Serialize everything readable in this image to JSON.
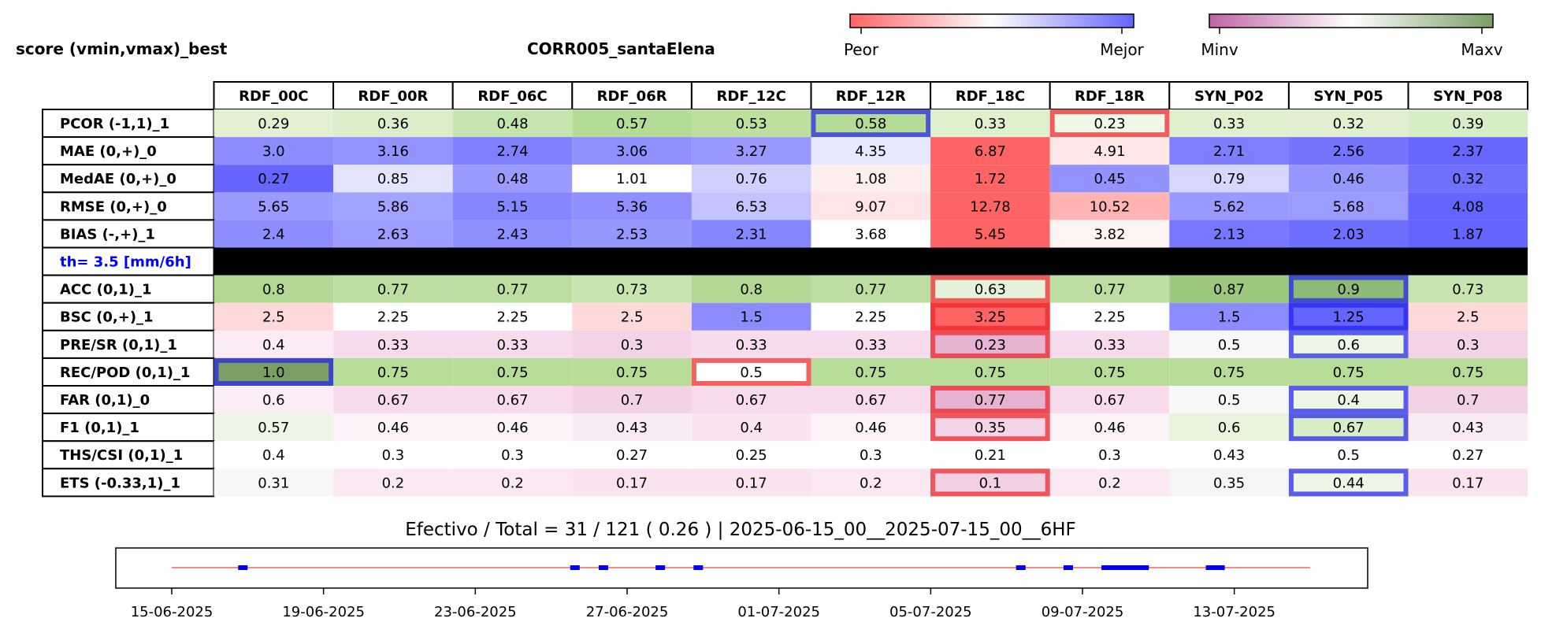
{
  "header": {
    "left_title": "score (vmin,vmax)_best",
    "center_title": "CORR005_santaElena"
  },
  "colorbars": [
    {
      "low_label": "Peor",
      "high_label": "Mejor",
      "colors": [
        "#ff6464",
        "#ffffff",
        "#6464ff"
      ]
    },
    {
      "low_label": "Minv",
      "high_label": "Maxv",
      "colors": [
        "#c064a4",
        "#ffffff",
        "#7a9e64"
      ]
    }
  ],
  "table": {
    "columns": [
      "RDF_00C",
      "RDF_00R",
      "RDF_06C",
      "RDF_06R",
      "RDF_12C",
      "RDF_12R",
      "RDF_18C",
      "RDF_18R",
      "SYN_P02",
      "SYN_P05",
      "SYN_P08"
    ],
    "rows": [
      {
        "label": "PCOR (-1,1)_1",
        "values": [
          "0.29",
          "0.36",
          "0.48",
          "0.57",
          "0.53",
          "0.58",
          "0.33",
          "0.23",
          "0.33",
          "0.32",
          "0.39"
        ],
        "colors": [
          "#e2f1d2",
          "#dbeecb",
          "#c6e4ad",
          "#b5dc96",
          "#bde09f",
          "#b3db94",
          "#dff0cf",
          "#f0f8e8",
          "#dff0cf",
          "#e0f0d0",
          "#d7edc6"
        ],
        "best": 5,
        "worst": 7
      },
      {
        "label": "MAE (0,+)_0",
        "values": [
          "3.0",
          "3.16",
          "2.74",
          "3.06",
          "3.27",
          "4.35",
          "6.87",
          "4.91",
          "2.71",
          "2.56",
          "2.37"
        ],
        "colors": [
          "#8c8cff",
          "#9393ff",
          "#8080ff",
          "#9090ff",
          "#9898ff",
          "#e8e8ff",
          "#ff6464",
          "#ffe7e7",
          "#7e7eff",
          "#7474ff",
          "#6767ff"
        ]
      },
      {
        "label": "MedAE (0,+)_0",
        "values": [
          "0.27",
          "0.85",
          "0.48",
          "1.01",
          "0.76",
          "1.08",
          "1.72",
          "0.45",
          "0.79",
          "0.46",
          "0.32"
        ],
        "colors": [
          "#6666ff",
          "#e4e4ff",
          "#9a9aff",
          "#fffdfd",
          "#d0d0ff",
          "#ffeeee",
          "#ff6464",
          "#9393ff",
          "#d6d6ff",
          "#9696ff",
          "#7070ff"
        ]
      },
      {
        "label": "RMSE (0,+)_0",
        "values": [
          "5.65",
          "5.86",
          "5.15",
          "5.36",
          "6.53",
          "9.07",
          "12.78",
          "10.52",
          "5.62",
          "5.68",
          "4.08"
        ],
        "colors": [
          "#9a9aff",
          "#a2a2ff",
          "#8686ff",
          "#8f8fff",
          "#c3c3ff",
          "#ffe5e5",
          "#ff6464",
          "#ffb3b3",
          "#9999ff",
          "#9c9cff",
          "#6464ff"
        ]
      },
      {
        "label": "BIAS (-,+)_1",
        "values": [
          "2.4",
          "2.63",
          "2.43",
          "2.53",
          "2.31",
          "3.68",
          "5.45",
          "3.82",
          "2.13",
          "2.03",
          "1.87"
        ],
        "colors": [
          "#8d8dff",
          "#9d9dff",
          "#8f8fff",
          "#9696ff",
          "#8686ff",
          "#ffffff",
          "#ff6464",
          "#fff4f4",
          "#7777ff",
          "#6f6fff",
          "#6464ff"
        ]
      },
      {
        "label": "th= 3.5 [mm/6h]",
        "separator": true
      },
      {
        "label": "ACC (0,1)_1",
        "values": [
          "0.8",
          "0.77",
          "0.77",
          "0.73",
          "0.8",
          "0.77",
          "0.63",
          "0.77",
          "0.87",
          "0.9",
          "0.73"
        ],
        "colors": [
          "#b2d894",
          "#bcdfa1",
          "#bcdfa1",
          "#c8e5b1",
          "#b2d894",
          "#bcdfa1",
          "#e6f3da",
          "#bcdfa1",
          "#9cc87e",
          "#8dba76",
          "#c8e5b1"
        ],
        "best": 9,
        "worst": 6
      },
      {
        "label": "BSC (0,+)_1",
        "values": [
          "2.5",
          "2.25",
          "2.25",
          "2.5",
          "1.5",
          "2.25",
          "3.25",
          "2.25",
          "1.5",
          "1.25",
          "2.5"
        ],
        "colors": [
          "#ffd9d9",
          "#ffffff",
          "#ffffff",
          "#ffd9d9",
          "#8c8cff",
          "#ffffff",
          "#ff6464",
          "#ffffff",
          "#8c8cff",
          "#6464ff",
          "#ffd9d9"
        ],
        "best": 9,
        "worst": 6
      },
      {
        "label": "PRE/SR (0,1)_1",
        "values": [
          "0.4",
          "0.33",
          "0.33",
          "0.3",
          "0.33",
          "0.33",
          "0.23",
          "0.33",
          "0.5",
          "0.6",
          "0.3"
        ],
        "colors": [
          "#fbebf5",
          "#f7dced",
          "#f7dced",
          "#f3d4e7",
          "#f7dced",
          "#f7dced",
          "#e7b3d3",
          "#f7dced",
          "#f8f8f8",
          "#eef7e6",
          "#f3d4e7"
        ],
        "best": 9,
        "worst": 6
      },
      {
        "label": "REC/POD (0,1)_1",
        "values": [
          "1.0",
          "0.75",
          "0.75",
          "0.75",
          "0.5",
          "0.75",
          "0.75",
          "0.75",
          "0.75",
          "0.75",
          "0.75"
        ],
        "colors": [
          "#7a9e64",
          "#b7dc98",
          "#b7dc98",
          "#b7dc98",
          "#ffffff",
          "#b7dc98",
          "#b7dc98",
          "#b7dc98",
          "#b7dc98",
          "#b7dc98",
          "#b7dc98"
        ],
        "best": 0,
        "worst": 4
      },
      {
        "label": "FAR (0,1)_0",
        "values": [
          "0.6",
          "0.67",
          "0.67",
          "0.7",
          "0.67",
          "0.67",
          "0.77",
          "0.67",
          "0.5",
          "0.4",
          "0.7"
        ],
        "colors": [
          "#fcedf6",
          "#f8dcee",
          "#f8dcee",
          "#f4d2e6",
          "#f8dcee",
          "#f8dcee",
          "#e6b2d2",
          "#f8dcee",
          "#f8f8f8",
          "#eef7e6",
          "#f4d2e6"
        ],
        "best": 9,
        "worst": 6
      },
      {
        "label": "F1 (0,1)_1",
        "values": [
          "0.57",
          "0.46",
          "0.46",
          "0.43",
          "0.4",
          "0.46",
          "0.35",
          "0.46",
          "0.6",
          "0.67",
          "0.43"
        ],
        "colors": [
          "#eef6e6",
          "#fcf2f8",
          "#fcf2f8",
          "#faeaf3",
          "#fae4f0",
          "#fcf2f8",
          "#f5d4e7",
          "#fcf2f8",
          "#e8f4dc",
          "#d9ecc8",
          "#faeaf3"
        ],
        "best": 9,
        "worst": 6
      },
      {
        "label": "THS/CSI (0,1)_1",
        "values": [
          "0.4",
          "0.3",
          "0.3",
          "0.27",
          "0.25",
          "0.3",
          "0.21",
          "0.3",
          "0.43",
          "0.5",
          "0.27"
        ],
        "colors": [
          "#ffffff",
          "#ffffff",
          "#ffffff",
          "#ffffff",
          "#ffffff",
          "#ffffff",
          "#ffffff",
          "#ffffff",
          "#ffffff",
          "#ffffff",
          "#ffffff"
        ]
      },
      {
        "label": "ETS (-0.33,1)_1",
        "values": [
          "0.31",
          "0.2",
          "0.2",
          "0.17",
          "0.17",
          "0.2",
          "0.1",
          "0.2",
          "0.35",
          "0.44",
          "0.17"
        ],
        "colors": [
          "#f7f7f7",
          "#fbe8f3",
          "#fbe8f3",
          "#fae3f0",
          "#fae3f0",
          "#fbe8f3",
          "#f2d0e4",
          "#fbe8f3",
          "#f5f5f5",
          "#eef7e6",
          "#fae3f0"
        ],
        "best": 9,
        "worst": 6
      }
    ]
  },
  "timeline": {
    "title": "Efectivo / Total  =  31 / 121 ( 0.26 ) | 2025-06-15_00__2025-07-15_00__6HF",
    "ticks": [
      "15-06-2025",
      "19-06-2025",
      "23-06-2025",
      "27-06-2025",
      "01-07-2025",
      "05-07-2025",
      "09-07-2025",
      "13-07-2025"
    ],
    "range_start": "2025-06-15",
    "range_end": "2025-07-15",
    "events": [
      [
        "2025-06-16T18:00",
        "2025-06-17T00:00"
      ],
      [
        "2025-06-25T12:00",
        "2025-06-25T18:00"
      ],
      [
        "2025-06-26T06:00",
        "2025-06-26T12:00"
      ],
      [
        "2025-06-27T18:00",
        "2025-06-28T00:00"
      ],
      [
        "2025-06-28T18:00",
        "2025-06-29T00:00"
      ],
      [
        "2025-07-07T06:00",
        "2025-07-07T12:00"
      ],
      [
        "2025-07-08T12:00",
        "2025-07-08T18:00"
      ],
      [
        "2025-07-09T12:00",
        "2025-07-10T18:00"
      ],
      [
        "2025-07-12T06:00",
        "2025-07-12T18:00"
      ]
    ]
  },
  "chart_data": {
    "type": "heatmap",
    "title": "CORR005_santaElena",
    "columns": [
      "RDF_00C",
      "RDF_00R",
      "RDF_06C",
      "RDF_06R",
      "RDF_12C",
      "RDF_12R",
      "RDF_18C",
      "RDF_18R",
      "SYN_P02",
      "SYN_P05",
      "SYN_P08"
    ],
    "rows": [
      "PCOR (-1,1)_1",
      "MAE (0,+)_0",
      "MedAE (0,+)_0",
      "RMSE (0,+)_0",
      "BIAS (-,+)_1",
      "ACC (0,1)_1",
      "BSC (0,+)_1",
      "PRE/SR (0,1)_1",
      "REC/POD (0,1)_1",
      "FAR (0,1)_0",
      "F1 (0,1)_1",
      "THS/CSI (0,1)_1",
      "ETS (-0.33,1)_1"
    ],
    "values": [
      [
        0.29,
        0.36,
        0.48,
        0.57,
        0.53,
        0.58,
        0.33,
        0.23,
        0.33,
        0.32,
        0.39
      ],
      [
        3.0,
        3.16,
        2.74,
        3.06,
        3.27,
        4.35,
        6.87,
        4.91,
        2.71,
        2.56,
        2.37
      ],
      [
        0.27,
        0.85,
        0.48,
        1.01,
        0.76,
        1.08,
        1.72,
        0.45,
        0.79,
        0.46,
        0.32
      ],
      [
        5.65,
        5.86,
        5.15,
        5.36,
        6.53,
        9.07,
        12.78,
        10.52,
        5.62,
        5.68,
        4.08
      ],
      [
        2.4,
        2.63,
        2.43,
        2.53,
        2.31,
        3.68,
        5.45,
        3.82,
        2.13,
        2.03,
        1.87
      ],
      [
        0.8,
        0.77,
        0.77,
        0.73,
        0.8,
        0.77,
        0.63,
        0.77,
        0.87,
        0.9,
        0.73
      ],
      [
        2.5,
        2.25,
        2.25,
        2.5,
        1.5,
        2.25,
        3.25,
        2.25,
        1.5,
        1.25,
        2.5
      ],
      [
        0.4,
        0.33,
        0.33,
        0.3,
        0.33,
        0.33,
        0.23,
        0.33,
        0.5,
        0.6,
        0.3
      ],
      [
        1.0,
        0.75,
        0.75,
        0.75,
        0.5,
        0.75,
        0.75,
        0.75,
        0.75,
        0.75,
        0.75
      ],
      [
        0.6,
        0.67,
        0.67,
        0.7,
        0.67,
        0.67,
        0.77,
        0.67,
        0.5,
        0.4,
        0.7
      ],
      [
        0.57,
        0.46,
        0.46,
        0.43,
        0.4,
        0.46,
        0.35,
        0.46,
        0.6,
        0.67,
        0.43
      ],
      [
        0.4,
        0.3,
        0.3,
        0.27,
        0.25,
        0.3,
        0.21,
        0.3,
        0.43,
        0.5,
        0.27
      ],
      [
        0.31,
        0.2,
        0.2,
        0.17,
        0.17,
        0.2,
        0.1,
        0.2,
        0.35,
        0.44,
        0.17
      ]
    ],
    "legend": [
      "Peor",
      "Mejor",
      "Minv",
      "Maxv"
    ]
  }
}
